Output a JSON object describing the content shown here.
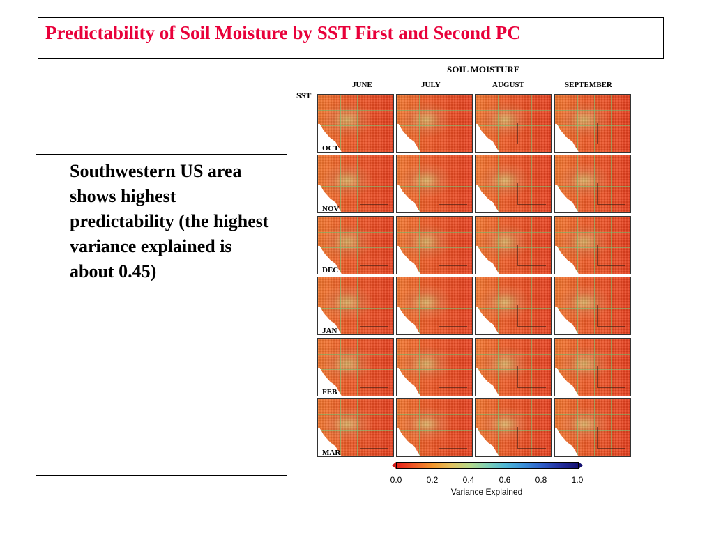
{
  "slide": {
    "title": "Predictability of Soil Moisture by SST First and Second PC",
    "bullet": "Southwestern US area shows highest predictability (the highest variance explained is about 0.45)"
  },
  "figure": {
    "title": "SOIL MOISTURE",
    "row_axis_label": "SST",
    "columns": [
      "JUNE",
      "JULY",
      "AUGUST",
      "SEPTEMBER"
    ],
    "rows": [
      "OCT",
      "NOV",
      "DEC",
      "JAN",
      "FEB",
      "MAR"
    ],
    "colorbar": {
      "ticks": [
        "0.0",
        "0.2",
        "0.4",
        "0.6",
        "0.8",
        "1.0"
      ],
      "label": "Variance Explained",
      "colors": [
        "#e8201a",
        "#ee5b26",
        "#f2972e",
        "#e2c15f",
        "#b8d98a",
        "#7fd0b5",
        "#4fb7d6",
        "#3a8fd8",
        "#2f5fc8",
        "#24309f",
        "#141070"
      ]
    },
    "accent_title_color": "#e8003a"
  }
}
